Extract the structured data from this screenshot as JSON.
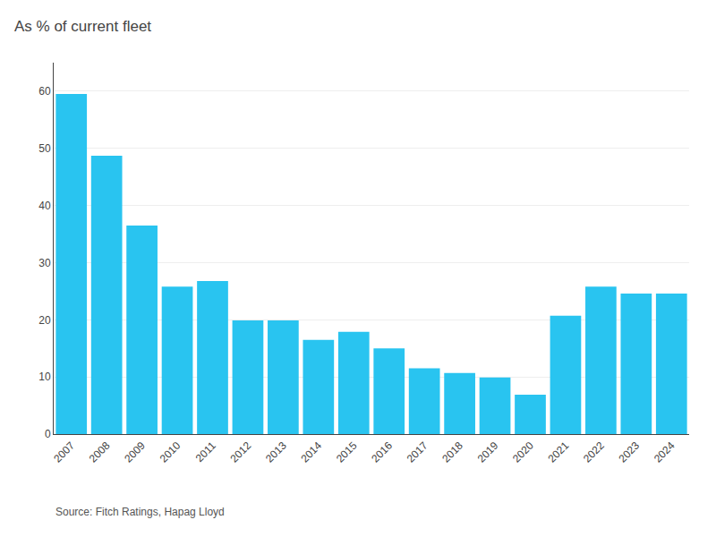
{
  "chart_data": {
    "type": "bar",
    "title": "As % of current fleet",
    "annotations": [
      "Source: Fitch Ratings, Hapag Lloyd"
    ],
    "categories": [
      "2007",
      "2008",
      "2009",
      "2010",
      "2011",
      "2012",
      "2013",
      "2014",
      "2015",
      "2016",
      "2017",
      "2018",
      "2019",
      "2020",
      "2021",
      "2022",
      "2023",
      "2024"
    ],
    "values": [
      59.5,
      48.7,
      36.5,
      25.8,
      26.8,
      19.9,
      19.9,
      16.5,
      17.9,
      15.0,
      11.5,
      10.7,
      9.9,
      6.9,
      20.7,
      25.8,
      24.6,
      24.6
    ],
    "color": "#29C4F0",
    "ylim": [
      0,
      65
    ],
    "yticks": [
      0,
      10,
      20,
      30,
      40,
      50,
      60
    ],
    "grid": true
  }
}
